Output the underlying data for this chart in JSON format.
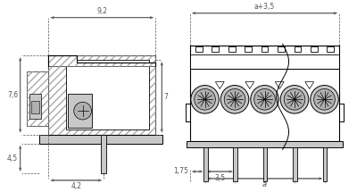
{
  "bg_color": "#ffffff",
  "line_color": "#000000",
  "gray_light": "#c8c8c8",
  "gray_mid": "#b0b0b0",
  "gray_dark": "#909090",
  "dim_color": "#555555",
  "annotations": {
    "dim_92": "9,2",
    "dim_76": "7,6",
    "dim_7": "7",
    "dim_45": "4,5",
    "dim_42": "4,2",
    "dim_a35": "a+3,5",
    "dim_175": "1,75",
    "dim_35": "3,5",
    "dim_a": "a"
  },
  "figsize": [
    4.0,
    2.15
  ],
  "dpi": 100
}
